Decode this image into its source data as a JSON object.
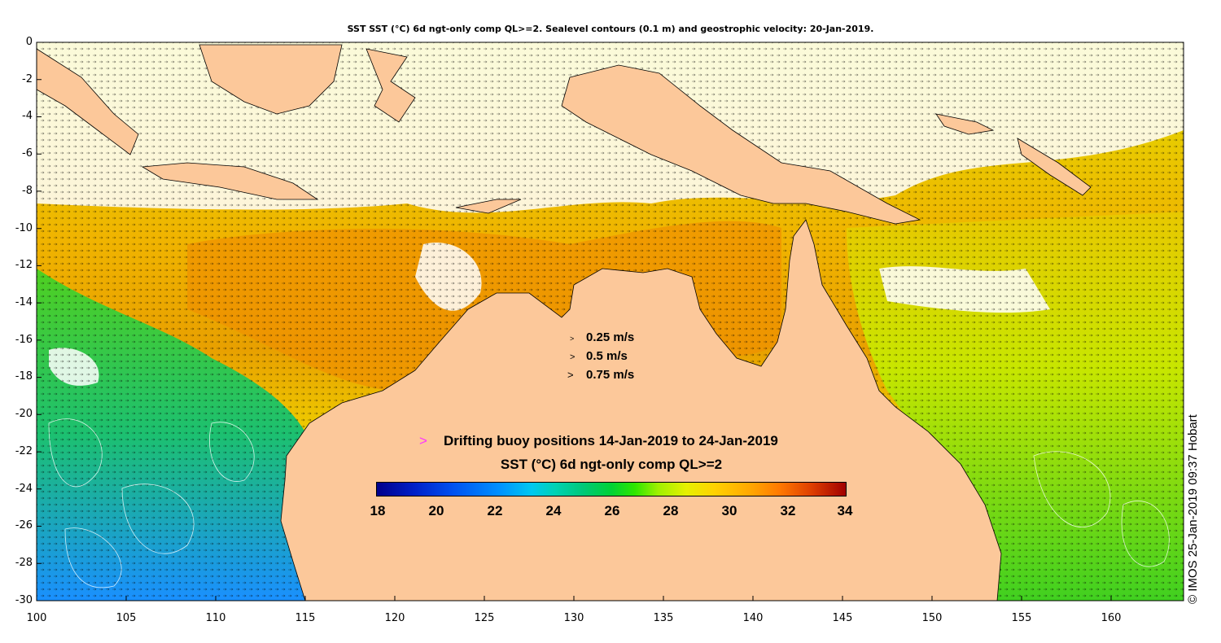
{
  "title": "SST SST (°C) 6d ngt-only comp QL>=2. Sealevel contours (0.1 m) and geostrophic velocity: 20-Jan-2019.",
  "axes": {
    "y_ticks": [
      "0",
      "-2",
      "-4",
      "-6",
      "-8",
      "-10",
      "-12",
      "-14",
      "-16",
      "-18",
      "-20",
      "-22",
      "-24",
      "-26",
      "-28",
      "-30"
    ],
    "x_ticks": [
      "100",
      "105",
      "110",
      "115",
      "120",
      "125",
      "130",
      "135",
      "140",
      "145",
      "150",
      "155",
      "160"
    ],
    "lon_range": [
      100,
      164
    ],
    "lat_range": [
      -30,
      0
    ]
  },
  "velocity_scale": [
    {
      "symbol": ">",
      "label": "0.25 m/s"
    },
    {
      "symbol": ">",
      "label": "0.5 m/s"
    },
    {
      "symbol": ">",
      "label": "0.75 m/s"
    }
  ],
  "buoy_legend": {
    "symbol": ">",
    "label": "Drifting buoy positions 14-Jan-2019 to 24-Jan-2019",
    "color": "#ff33ff"
  },
  "colorbar": {
    "title": "SST (°C) 6d ngt-only comp QL>=2",
    "ticks": [
      "18",
      "20",
      "22",
      "24",
      "26",
      "28",
      "30",
      "32",
      "34"
    ],
    "range": [
      18,
      34
    ]
  },
  "credit": "©  IMOS 25-Jan-2019 09:37 Hobart",
  "colors": {
    "land": "#fcc89a",
    "cloud_mask": "#ffffff",
    "warm": "#f0a000",
    "cool": "#2ecc40",
    "cold": "#1e90ff"
  },
  "map_icons": [
    "velocity-arrow-icon",
    "buoy-marker-icon"
  ]
}
